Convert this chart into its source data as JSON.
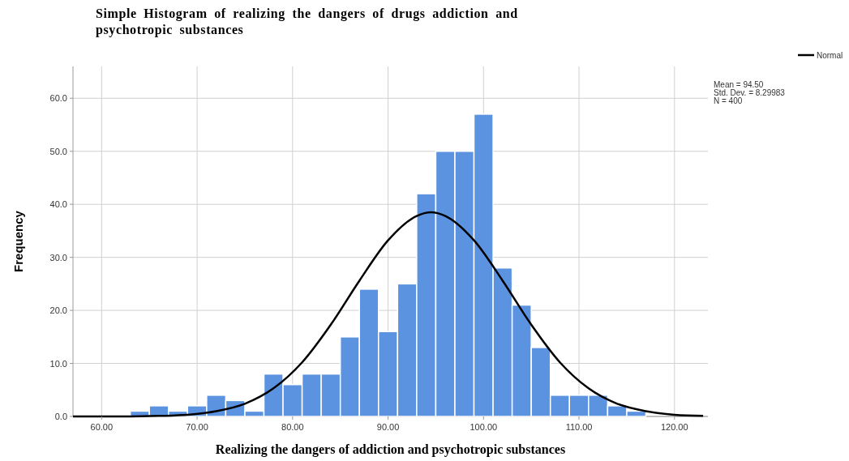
{
  "chart_data": {
    "type": "histogram",
    "title": "Simple Histogram of realizing the dangers of drugs addiction and psychotropic substances",
    "xlabel": "Realizing the dangers of addiction and psychotropic substances",
    "ylabel": "Frequency",
    "annotations": [
      "Mean = 94.50",
      "Std. Dev. = 8.29983",
      "N = 400"
    ],
    "xlim": [
      57,
      123.5
    ],
    "xticks": [
      {
        "value": 60,
        "label": "60.00"
      },
      {
        "value": 70,
        "label": "70.00"
      },
      {
        "value": 80,
        "label": "80.00"
      },
      {
        "value": 90,
        "label": "90.00"
      },
      {
        "value": 100,
        "label": "100.00"
      },
      {
        "value": 110,
        "label": "110.00"
      },
      {
        "value": 120,
        "label": "120.00"
      }
    ],
    "ylim": [
      0,
      66
    ],
    "yticks": [
      {
        "value": 0,
        "label": "0.0"
      },
      {
        "value": 10,
        "label": "10.0"
      },
      {
        "value": 20,
        "label": "20.0"
      },
      {
        "value": 30,
        "label": "30.0"
      },
      {
        "value": 40,
        "label": "40.0"
      },
      {
        "value": 50,
        "label": "50.0"
      },
      {
        "value": 60,
        "label": "60.0"
      }
    ],
    "grid": true,
    "legend": "top right",
    "color": "#5b93e0",
    "bins": [
      63,
      65,
      67,
      69,
      71,
      73,
      75,
      77,
      79,
      81,
      83,
      85,
      87,
      89,
      91,
      93,
      95,
      97,
      99,
      101,
      103,
      105,
      107,
      109,
      111,
      113,
      115,
      117
    ],
    "values": [
      1,
      2,
      1,
      2,
      4,
      3,
      1,
      8,
      6,
      8,
      8,
      15,
      24,
      16,
      25,
      42,
      50,
      50,
      57,
      28,
      21,
      13,
      4,
      4,
      4,
      2,
      1
    ],
    "series": [
      {
        "type": "line",
        "name": "Normal",
        "color": "#000000",
        "x": [
          57,
          60,
          63,
          66,
          69,
          72,
          75,
          78,
          81,
          84,
          87,
          90,
          93,
          94.5,
          96,
          99,
          102,
          105,
          108,
          111,
          114,
          117,
          120,
          123
        ],
        "values": [
          0,
          0,
          0,
          0.1,
          0.3,
          1,
          2.4,
          5.3,
          10.2,
          17.3,
          25.6,
          33.2,
          37.8,
          38.5,
          37.8,
          33.2,
          25.6,
          17.3,
          10.2,
          5.3,
          2.4,
          1,
          0.3,
          0.1
        ]
      }
    ]
  }
}
